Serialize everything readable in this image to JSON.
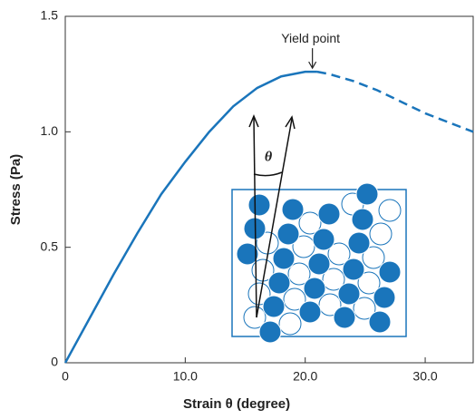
{
  "chart_data": {
    "type": "line",
    "xlabel": "Strain θ (degree)",
    "ylabel": "Stress (Pa)",
    "x": [
      0,
      2,
      4,
      6,
      8,
      10,
      12,
      14,
      16,
      18,
      20,
      21,
      22,
      24,
      26,
      28,
      30,
      32,
      34
    ],
    "series": [
      {
        "color": "#1a75bb",
        "style": "solid",
        "values": [
          0,
          0.19,
          0.38,
          0.56,
          0.73,
          0.87,
          1.0,
          1.11,
          1.19,
          1.24,
          1.26,
          1.26,
          null,
          null,
          null,
          null,
          null,
          null,
          null
        ]
      },
      {
        "color": "#1a75bb",
        "style": "dashed",
        "values": [
          null,
          null,
          null,
          null,
          null,
          null,
          null,
          null,
          null,
          null,
          null,
          1.26,
          1.25,
          1.22,
          1.18,
          1.13,
          1.08,
          1.04,
          1.0
        ]
      }
    ],
    "xlim": [
      0,
      34
    ],
    "ylim": [
      0,
      1.5
    ],
    "xticks": [
      0,
      {
        "value": 10,
        "label": "10.0"
      },
      {
        "value": 20,
        "label": "20.0"
      },
      {
        "value": 30,
        "label": "30.0"
      }
    ],
    "yticks": [
      0,
      0.5,
      {
        "value": 1,
        "label": "1.0"
      },
      1.5
    ],
    "annotations": [
      {
        "text": "Yield point",
        "x": 20.6,
        "y": 1.26
      },
      {
        "text": "θ"
      }
    ]
  }
}
